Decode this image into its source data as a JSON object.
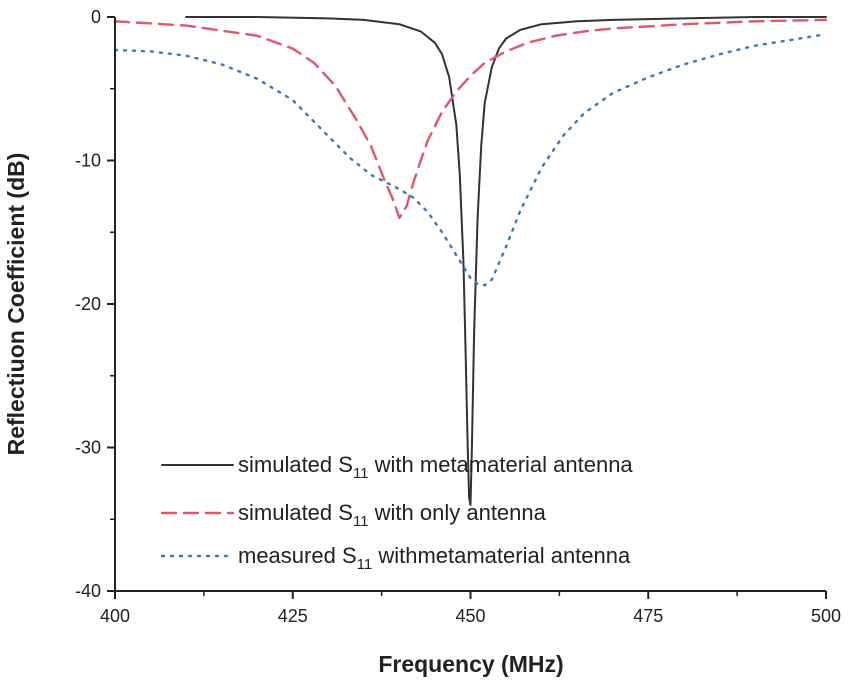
{
  "chart_data": {
    "type": "line",
    "title": "",
    "xlabel": "Frequency (MHz)",
    "ylabel": "Reflectiuon Coefficient (dB)",
    "xlim": [
      400,
      500
    ],
    "ylim": [
      -40,
      0
    ],
    "x_ticks": [
      400,
      425,
      450,
      475,
      500
    ],
    "y_ticks": [
      0,
      -10,
      -20,
      -30,
      -40
    ],
    "grid": false,
    "legend_position": "bottom-center",
    "series": [
      {
        "name_pre": "simulated S",
        "name_sub": "11",
        "name_post": " with metamaterial antenna",
        "color": "#333333",
        "style": "solid",
        "x": [
          410,
          420,
          430,
          435,
          440,
          443,
          445,
          446,
          447,
          448,
          448.5,
          449,
          449.3,
          449.6,
          449.8,
          450,
          450.2,
          450.5,
          451,
          451.5,
          452,
          453,
          454,
          455,
          457,
          460,
          465,
          470,
          480,
          490,
          500
        ],
        "y": [
          0,
          0,
          -0.1,
          -0.2,
          -0.5,
          -1.0,
          -1.8,
          -2.6,
          -4.2,
          -7.5,
          -11,
          -17,
          -23,
          -30,
          -33.5,
          -34,
          -30,
          -22,
          -14,
          -9,
          -6,
          -3.5,
          -2.2,
          -1.5,
          -0.9,
          -0.5,
          -0.3,
          -0.2,
          -0.1,
          0,
          0
        ]
      },
      {
        "name_pre": "simulated S",
        "name_sub": "11",
        "name_post": " with only antenna",
        "color": "#e0566b",
        "style": "dashed",
        "x": [
          400,
          410,
          420,
          425,
          428,
          431,
          434,
          436,
          438,
          439,
          440,
          441,
          442,
          443,
          444,
          446,
          448,
          450,
          452,
          455,
          458,
          462,
          466,
          470,
          480,
          490,
          500
        ],
        "y": [
          -0.3,
          -0.6,
          -1.3,
          -2.2,
          -3.2,
          -4.8,
          -7.2,
          -9,
          -11.5,
          -12.6,
          -14,
          -13.2,
          -11.5,
          -10,
          -8.6,
          -6.6,
          -5.2,
          -4.1,
          -3.2,
          -2.4,
          -1.8,
          -1.3,
          -1,
          -0.8,
          -0.5,
          -0.3,
          -0.2
        ]
      },
      {
        "name_pre": "measured S",
        "name_sub": "11",
        "name_post": " withmetamaterial antenna",
        "color": "#3b78b5",
        "style": "dotted",
        "x": [
          400,
          405,
          410,
          415,
          420,
          425,
          430,
          433,
          436,
          438,
          440,
          442,
          444,
          446,
          448,
          450,
          451,
          452,
          453,
          455,
          457,
          460,
          463,
          466,
          470,
          475,
          480,
          485,
          490,
          495,
          500
        ],
        "y": [
          -2.3,
          -2.4,
          -2.7,
          -3.3,
          -4.3,
          -5.8,
          -8.3,
          -9.8,
          -11,
          -11.5,
          -12,
          -12.6,
          -13.6,
          -15,
          -16.6,
          -18.2,
          -18.6,
          -18.7,
          -18.3,
          -16,
          -13.5,
          -10.5,
          -8.3,
          -6.7,
          -5.3,
          -4.2,
          -3.3,
          -2.6,
          -2,
          -1.6,
          -1.2
        ]
      }
    ]
  }
}
